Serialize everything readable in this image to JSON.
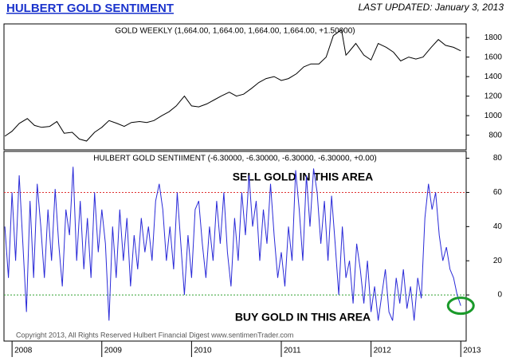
{
  "header": {
    "title": "HULBERT GOLD SENTIMENT",
    "last_updated": "LAST UPDATED:  January 3, 2013"
  },
  "copyright": "Copyright 2013, All Rights Reserved  Hulbert Financial Digest  www.sentimenTrader.com",
  "chart_data": [
    {
      "type": "line",
      "title": "GOLD WEEKLY (1,664.00, 1,664.00, 1,664.00, 1,664.00, +1.50000)",
      "x": [
        2007.92,
        2008.0,
        2008.08,
        2008.17,
        2008.25,
        2008.33,
        2008.42,
        2008.5,
        2008.58,
        2008.67,
        2008.75,
        2008.83,
        2008.92,
        2009.0,
        2009.08,
        2009.17,
        2009.25,
        2009.33,
        2009.42,
        2009.5,
        2009.58,
        2009.67,
        2009.75,
        2009.83,
        2009.92,
        2010.0,
        2010.08,
        2010.17,
        2010.25,
        2010.33,
        2010.42,
        2010.5,
        2010.58,
        2010.67,
        2010.75,
        2010.83,
        2010.92,
        2011.0,
        2011.08,
        2011.17,
        2011.25,
        2011.33,
        2011.42,
        2011.5,
        2011.58,
        2011.67,
        2011.72,
        2011.75,
        2011.83,
        2011.92,
        2012.0,
        2012.08,
        2012.17,
        2012.25,
        2012.33,
        2012.42,
        2012.5,
        2012.58,
        2012.67,
        2012.75,
        2012.83,
        2012.92,
        2013.0
      ],
      "series": [
        {
          "name": "Gold",
          "color": "#000000",
          "values": [
            790,
            840,
            920,
            970,
            900,
            880,
            890,
            940,
            820,
            830,
            760,
            740,
            830,
            880,
            950,
            920,
            890,
            930,
            940,
            930,
            950,
            1000,
            1040,
            1100,
            1200,
            1100,
            1090,
            1120,
            1160,
            1200,
            1240,
            1200,
            1220,
            1280,
            1340,
            1380,
            1400,
            1360,
            1380,
            1430,
            1500,
            1530,
            1530,
            1600,
            1820,
            1880,
            1620,
            1650,
            1740,
            1620,
            1570,
            1740,
            1700,
            1650,
            1560,
            1600,
            1580,
            1600,
            1700,
            1780,
            1720,
            1700,
            1664
          ]
        }
      ],
      "xlim": [
        2007.91,
        2013.06
      ],
      "ylim": [
        650,
        1940
      ],
      "yticks": [
        800,
        1000,
        1200,
        1400,
        1600,
        1800
      ]
    },
    {
      "type": "line",
      "title": "HULBERT GOLD SENTIIMENT (-6.30000, -6.30000, -6.30000, -6.30000, +0.00)",
      "x": [
        2007.92,
        2007.96,
        2008.0,
        2008.04,
        2008.08,
        2008.12,
        2008.16,
        2008.2,
        2008.24,
        2008.28,
        2008.32,
        2008.36,
        2008.4,
        2008.44,
        2008.48,
        2008.52,
        2008.56,
        2008.6,
        2008.64,
        2008.68,
        2008.72,
        2008.76,
        2008.8,
        2008.84,
        2008.88,
        2008.92,
        2008.96,
        2009.0,
        2009.04,
        2009.08,
        2009.12,
        2009.16,
        2009.2,
        2009.24,
        2009.28,
        2009.32,
        2009.36,
        2009.4,
        2009.44,
        2009.48,
        2009.52,
        2009.56,
        2009.6,
        2009.64,
        2009.68,
        2009.72,
        2009.76,
        2009.8,
        2009.84,
        2009.88,
        2009.92,
        2009.96,
        2010.0,
        2010.04,
        2010.08,
        2010.12,
        2010.16,
        2010.2,
        2010.24,
        2010.28,
        2010.32,
        2010.36,
        2010.4,
        2010.44,
        2010.48,
        2010.52,
        2010.56,
        2010.6,
        2010.64,
        2010.68,
        2010.72,
        2010.76,
        2010.8,
        2010.84,
        2010.88,
        2010.92,
        2010.96,
        2011.0,
        2011.04,
        2011.08,
        2011.12,
        2011.16,
        2011.2,
        2011.24,
        2011.28,
        2011.32,
        2011.36,
        2011.4,
        2011.44,
        2011.48,
        2011.52,
        2011.56,
        2011.6,
        2011.64,
        2011.68,
        2011.72,
        2011.76,
        2011.8,
        2011.84,
        2011.88,
        2011.92,
        2011.96,
        2012.0,
        2012.04,
        2012.08,
        2012.12,
        2012.16,
        2012.2,
        2012.24,
        2012.28,
        2012.32,
        2012.36,
        2012.4,
        2012.44,
        2012.48,
        2012.52,
        2012.56,
        2012.6,
        2012.64,
        2012.68,
        2012.72,
        2012.76,
        2012.8,
        2012.84,
        2012.88,
        2012.92,
        2012.96,
        2013.0
      ],
      "series": [
        {
          "name": "Sentiment",
          "color": "#2a2ad8",
          "values": [
            40,
            10,
            60,
            20,
            70,
            30,
            -10,
            55,
            10,
            65,
            40,
            10,
            50,
            20,
            62,
            30,
            5,
            50,
            35,
            75,
            20,
            55,
            15,
            45,
            10,
            60,
            25,
            50,
            30,
            -15,
            40,
            10,
            50,
            20,
            45,
            5,
            35,
            15,
            45,
            25,
            40,
            20,
            55,
            65,
            50,
            20,
            40,
            15,
            60,
            30,
            0,
            35,
            10,
            50,
            55,
            30,
            10,
            40,
            20,
            55,
            30,
            60,
            25,
            5,
            45,
            20,
            60,
            35,
            70,
            40,
            55,
            20,
            50,
            30,
            65,
            35,
            10,
            25,
            5,
            40,
            20,
            73,
            50,
            20,
            70,
            40,
            74,
            60,
            30,
            55,
            20,
            58,
            30,
            0,
            40,
            10,
            20,
            -5,
            30,
            15,
            -5,
            20,
            -10,
            5,
            -15,
            0,
            15,
            -10,
            -15,
            10,
            -5,
            15,
            -8,
            5,
            -15,
            10,
            -2,
            45,
            65,
            50,
            60,
            35,
            20,
            28,
            15,
            10,
            0,
            -6.3
          ]
        }
      ],
      "xlim": [
        2007.91,
        2013.06
      ],
      "ylim": [
        -27,
        84
      ],
      "yticks": [
        0,
        20,
        40,
        60,
        80
      ],
      "xticks": [
        2008,
        2009,
        2010,
        2011,
        2012,
        2013
      ],
      "reference_lines": [
        {
          "value": 60,
          "color": "#e03030"
        },
        {
          "value": 0,
          "color": "#30a030"
        }
      ],
      "annotations": [
        {
          "text": "SELL GOLD IN THIS AREA",
          "color": "#e02020"
        },
        {
          "text": "BUY GOLD IN THIS AREA",
          "color": "#2a3fb8"
        }
      ]
    }
  ]
}
